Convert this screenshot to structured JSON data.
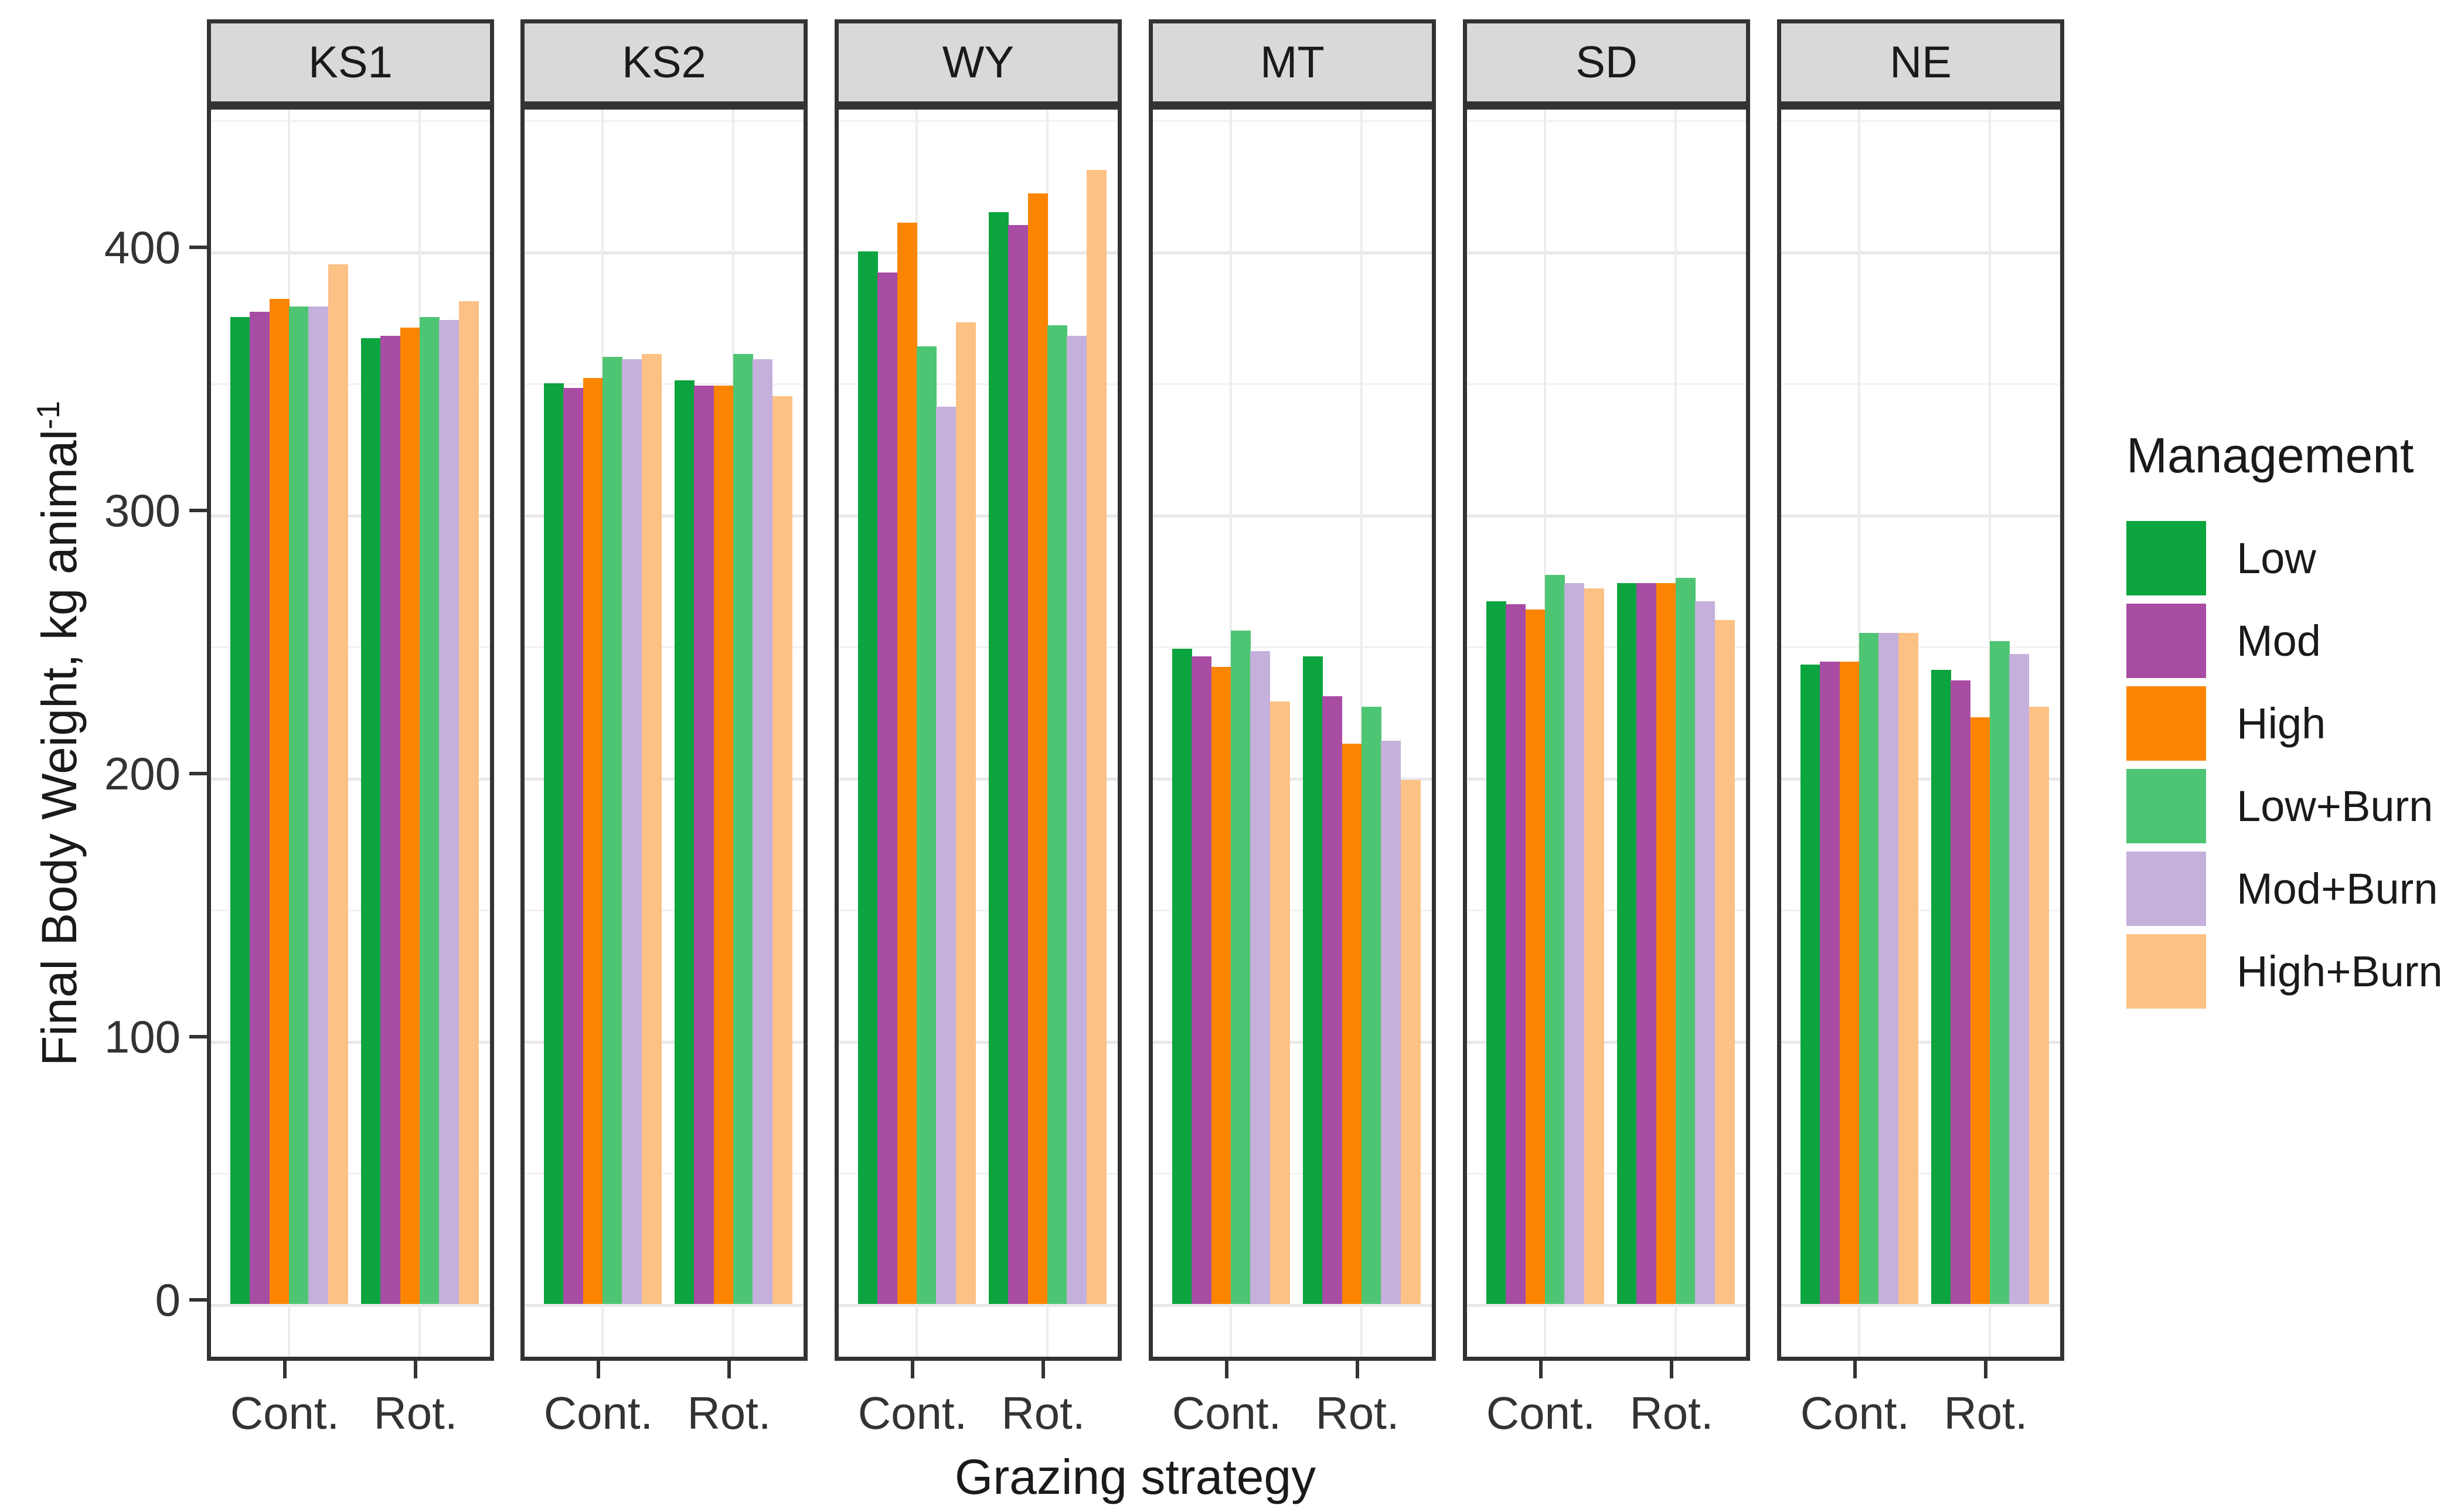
{
  "chart_data": {
    "type": "bar",
    "title": "",
    "xlabel": "Grazing strategy",
    "ylabel": "Final Body Weight, kg animal",
    "ylabel_superscript": "-1",
    "facets": [
      "KS1",
      "KS2",
      "WY",
      "MT",
      "SD",
      "NE"
    ],
    "categories": [
      "Cont.",
      "Rot."
    ],
    "y_ticks": [
      0,
      100,
      200,
      300,
      400
    ],
    "y_minor_ticks": [
      50,
      150,
      250,
      350,
      450
    ],
    "ylim": [
      0,
      455
    ],
    "grid": "on",
    "legend_position": "right",
    "legend": {
      "title": "Management",
      "entries": [
        {
          "label": "Low",
          "color": "#0BA43E"
        },
        {
          "label": "Mod",
          "color": "#A84CA4"
        },
        {
          "label": "High",
          "color": "#FB8500"
        },
        {
          "label": "Low+Burn",
          "color": "#4EC573"
        },
        {
          "label": "Mod+Burn",
          "color": "#C5AFDB"
        },
        {
          "label": "High+Burn",
          "color": "#FCC184"
        }
      ]
    },
    "series": [
      {
        "facet": "KS1",
        "values": {
          "Cont.": [
            375,
            377,
            382,
            379,
            379,
            395
          ],
          "Rot.": [
            367,
            368,
            371,
            375,
            374,
            381
          ]
        }
      },
      {
        "facet": "KS2",
        "values": {
          "Cont.": [
            350,
            348,
            352,
            360,
            359,
            361
          ],
          "Rot.": [
            351,
            349,
            349,
            361,
            359,
            345
          ]
        }
      },
      {
        "facet": "WY",
        "values": {
          "Cont.": [
            400,
            392,
            411,
            364,
            341,
            373
          ],
          "Rot.": [
            415,
            410,
            422,
            372,
            368,
            431
          ]
        }
      },
      {
        "facet": "MT",
        "values": {
          "Cont.": [
            249,
            246,
            242,
            256,
            248,
            229
          ],
          "Rot.": [
            246,
            231,
            213,
            227,
            214,
            199
          ]
        }
      },
      {
        "facet": "SD",
        "values": {
          "Cont.": [
            267,
            266,
            264,
            277,
            274,
            272
          ],
          "Rot.": [
            274,
            274,
            274,
            276,
            267,
            260
          ]
        }
      },
      {
        "facet": "NE",
        "values": {
          "Cont.": [
            243,
            244,
            244,
            255,
            255,
            255
          ],
          "Rot.": [
            241,
            237,
            223,
            252,
            247,
            227
          ]
        }
      }
    ],
    "colors": {
      "strip_fill": "#D9D9D9",
      "panel_border": "#333333",
      "grid_major": "#E8E8E8",
      "grid_minor": "#F2F2F2",
      "tick_text": "#333333"
    }
  }
}
